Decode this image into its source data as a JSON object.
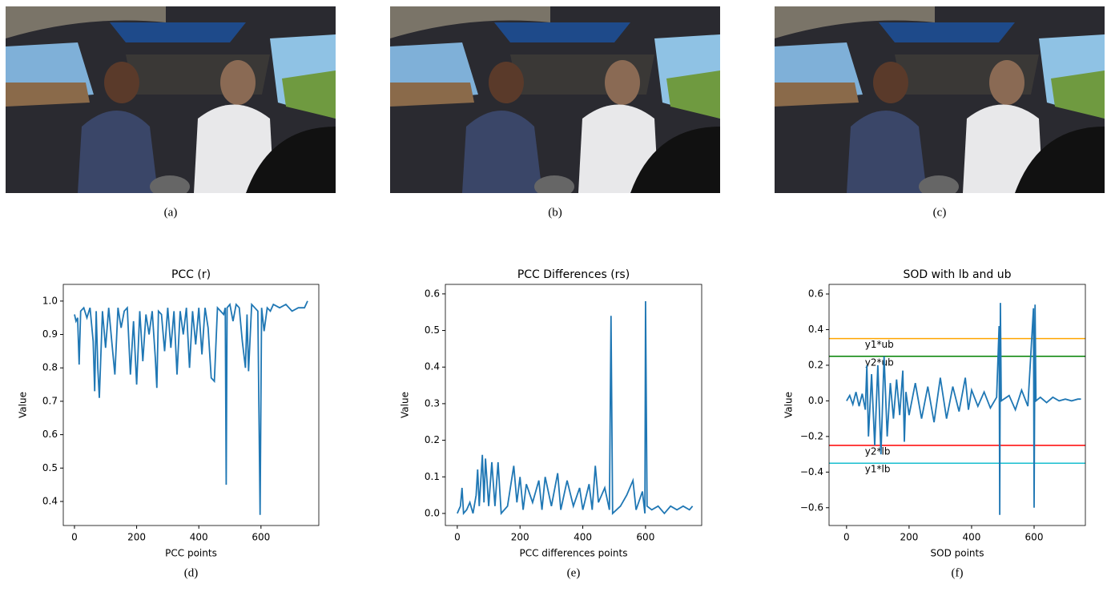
{
  "images": [
    {
      "caption": "(a)"
    },
    {
      "caption": "(b)"
    },
    {
      "caption": "(c)"
    }
  ],
  "chart_data": [
    {
      "type": "line",
      "title": "PCC (r)",
      "x_label": "PCC points",
      "y_label": "Value",
      "caption": "(d)",
      "color": "#1f77b4",
      "x": [
        0,
        5,
        10,
        15,
        20,
        30,
        40,
        50,
        60,
        65,
        70,
        75,
        80,
        90,
        100,
        110,
        120,
        130,
        140,
        150,
        160,
        170,
        180,
        190,
        200,
        210,
        220,
        230,
        240,
        250,
        260,
        265,
        270,
        280,
        290,
        300,
        310,
        320,
        330,
        340,
        350,
        360,
        370,
        380,
        390,
        400,
        410,
        420,
        430,
        440,
        450,
        460,
        470,
        480,
        485,
        488,
        491,
        500,
        510,
        520,
        530,
        540,
        550,
        555,
        560,
        570,
        580,
        590,
        597,
        602,
        610,
        620,
        630,
        640,
        660,
        680,
        700,
        720,
        740,
        750
      ],
      "values": [
        0.96,
        0.94,
        0.95,
        0.81,
        0.97,
        0.98,
        0.95,
        0.98,
        0.88,
        0.73,
        0.97,
        0.8,
        0.71,
        0.97,
        0.86,
        0.98,
        0.88,
        0.78,
        0.98,
        0.92,
        0.97,
        0.98,
        0.78,
        0.94,
        0.75,
        0.97,
        0.82,
        0.96,
        0.9,
        0.97,
        0.83,
        0.74,
        0.97,
        0.96,
        0.85,
        0.98,
        0.86,
        0.97,
        0.78,
        0.97,
        0.9,
        0.98,
        0.8,
        0.97,
        0.87,
        0.98,
        0.84,
        0.98,
        0.92,
        0.77,
        0.76,
        0.98,
        0.97,
        0.96,
        0.98,
        0.45,
        0.98,
        0.99,
        0.94,
        0.99,
        0.98,
        0.88,
        0.8,
        0.96,
        0.79,
        0.99,
        0.98,
        0.97,
        0.36,
        0.98,
        0.91,
        0.98,
        0.97,
        0.99,
        0.98,
        0.99,
        0.97,
        0.98,
        0.98,
        1.0
      ],
      "xlim": [
        -36,
        786
      ],
      "ylim": [
        0.328,
        1.05
      ],
      "xticks": [
        0,
        200,
        400,
        600
      ],
      "yticks": [
        {
          "value": 0.4,
          "label": "0.4"
        },
        0.5,
        0.6,
        0.7,
        0.8,
        0.9,
        {
          "value": 1,
          "label": "1.0"
        }
      ]
    },
    {
      "type": "line",
      "title": "PCC Differences (rs)",
      "x_label": "PCC differences points",
      "y_label": "Value",
      "caption": "(e)",
      "color": "#1f77b4",
      "x": [
        0,
        5,
        10,
        15,
        20,
        30,
        40,
        50,
        60,
        65,
        70,
        80,
        85,
        90,
        100,
        110,
        120,
        130,
        140,
        160,
        180,
        190,
        200,
        210,
        220,
        240,
        260,
        270,
        280,
        300,
        320,
        330,
        350,
        370,
        390,
        400,
        420,
        430,
        440,
        450,
        470,
        485,
        490,
        495,
        520,
        540,
        560,
        570,
        590,
        598,
        600,
        605,
        620,
        640,
        660,
        680,
        700,
        720,
        740,
        750
      ],
      "values": [
        0.0,
        0.01,
        0.02,
        0.07,
        0.0,
        0.01,
        0.03,
        0.0,
        0.05,
        0.12,
        0.02,
        0.16,
        0.03,
        0.15,
        0.02,
        0.14,
        0.02,
        0.14,
        0.0,
        0.02,
        0.13,
        0.03,
        0.1,
        0.01,
        0.08,
        0.03,
        0.09,
        0.01,
        0.1,
        0.02,
        0.11,
        0.01,
        0.09,
        0.02,
        0.07,
        0.01,
        0.08,
        0.01,
        0.13,
        0.03,
        0.07,
        0.01,
        0.54,
        0.0,
        0.02,
        0.05,
        0.09,
        0.01,
        0.06,
        0.0,
        0.58,
        0.02,
        0.01,
        0.02,
        0.0,
        0.02,
        0.01,
        0.02,
        0.01,
        0.02
      ],
      "xlim": [
        -38,
        779
      ],
      "ylim": [
        -0.033,
        0.626
      ],
      "xticks": [
        0,
        200,
        400,
        600
      ],
      "yticks": [
        {
          "value": 0,
          "label": "0.0"
        },
        0.1,
        0.2,
        0.3,
        0.4,
        0.5,
        0.6
      ]
    },
    {
      "type": "line",
      "title": "SOD with lb and ub",
      "x_label": "SOD points",
      "y_label": "Value",
      "caption": "(f)",
      "color": "#1f77b4",
      "x": [
        0,
        10,
        20,
        30,
        40,
        50,
        60,
        65,
        70,
        80,
        90,
        100,
        110,
        120,
        130,
        140,
        150,
        160,
        170,
        180,
        185,
        190,
        200,
        220,
        240,
        260,
        280,
        300,
        320,
        340,
        360,
        380,
        390,
        400,
        420,
        440,
        460,
        480,
        488,
        490,
        492,
        495,
        520,
        540,
        560,
        580,
        598,
        600,
        603,
        606,
        620,
        640,
        660,
        680,
        700,
        720,
        740,
        750
      ],
      "values": [
        0.0,
        0.03,
        -0.02,
        0.05,
        -0.03,
        0.04,
        -0.05,
        0.2,
        -0.2,
        0.15,
        -0.25,
        0.2,
        -0.3,
        0.25,
        -0.2,
        0.1,
        -0.1,
        0.12,
        -0.08,
        0.17,
        -0.23,
        0.05,
        -0.08,
        0.1,
        -0.1,
        0.08,
        -0.12,
        0.13,
        -0.1,
        0.08,
        -0.06,
        0.13,
        -0.05,
        0.06,
        -0.03,
        0.05,
        -0.04,
        0.02,
        0.42,
        -0.64,
        0.55,
        0.0,
        0.03,
        -0.05,
        0.06,
        -0.03,
        0.52,
        -0.6,
        0.54,
        0.0,
        0.02,
        -0.01,
        0.02,
        0.0,
        0.01,
        0.0,
        0.01,
        0.01
      ],
      "xlim": [
        -56,
        764
      ],
      "ylim": [
        -0.7,
        0.654
      ],
      "xticks": [
        0,
        200,
        400,
        600
      ],
      "yticks": [
        {
          "value": -0.6,
          "label": "−0.6"
        },
        {
          "value": -0.4,
          "label": "−0.4"
        },
        {
          "value": -0.2,
          "label": "−0.2"
        },
        {
          "value": 0,
          "label": "0.0"
        },
        0.2,
        0.4,
        0.6
      ],
      "hlines": [
        {
          "value": 0.35,
          "label": "y1*ub",
          "color": "orange"
        },
        {
          "value": 0.25,
          "label": "y2*ub",
          "color": "green"
        },
        {
          "value": -0.25,
          "label": "y2*lb",
          "color": "red"
        },
        {
          "value": -0.35,
          "label": "y1*lb",
          "color": "#17becf"
        }
      ]
    }
  ]
}
